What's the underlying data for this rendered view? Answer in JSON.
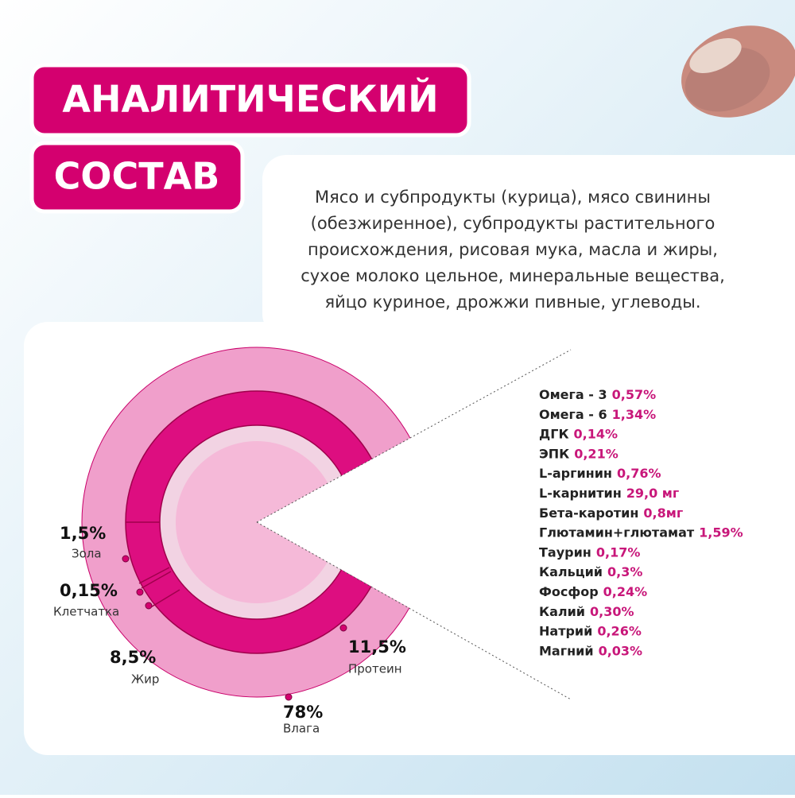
{
  "title": {
    "line1": "АНАЛИТИЧЕСКИЙ",
    "line2": "СОСТАВ"
  },
  "ingredients": [
    "Мясо и субпродукты (курица), мясо свинины",
    "(обезжиренное), субпродукты растительного",
    "происхождения, рисовая мука, масла и жиры,",
    "сухое молоко цельное, минеральные вещества,",
    "яйцо куриное, дрожжи пивные, углеводы."
  ],
  "composition": [
    {
      "value": "1,5%",
      "label": "Зола"
    },
    {
      "value": "0,15%",
      "label": "Клетчатка"
    },
    {
      "value": "8,5%",
      "label": "Жир"
    },
    {
      "value": "78%",
      "label": "Влага"
    },
    {
      "value": "11,5%",
      "label": "Протеин"
    }
  ],
  "nutrients": [
    {
      "name": "Омега - 3",
      "value": "0,57%"
    },
    {
      "name": "Омега - 6",
      "value": "1,34%"
    },
    {
      "name": "ДГК",
      "value": "0,14%"
    },
    {
      "name": "ЭПК",
      "value": "0,21%"
    },
    {
      "name": "L-аргинин",
      "value": "0,76%"
    },
    {
      "name": "L-карнитин",
      "value": "29,0 мг"
    },
    {
      "name": "Бета-каротин",
      "value": "0,8мг"
    },
    {
      "name": "Глютамин+глютамат",
      "value": "1,59%"
    },
    {
      "name": "Таурин",
      "value": "0,17%"
    },
    {
      "name": "Кальций",
      "value": "0,3%"
    },
    {
      "name": "Фосфор",
      "value": "0,24%"
    },
    {
      "name": "Калий",
      "value": "0,30%"
    },
    {
      "name": "Натрий",
      "value": "0,26%"
    },
    {
      "name": "Магний",
      "value": "0,03%"
    }
  ]
}
